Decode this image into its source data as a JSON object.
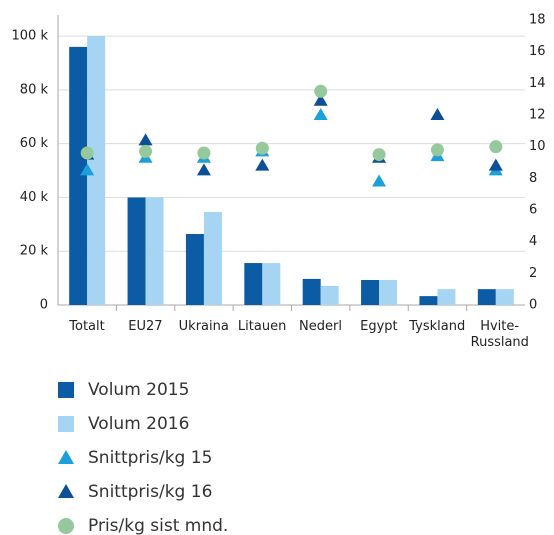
{
  "chart_data": {
    "type": "bar",
    "categories": [
      "Totalt",
      "EU27",
      "Ukraina",
      "Litauen",
      "Nederl",
      "Egypt",
      "Tyskland",
      "Hvite-Russland"
    ],
    "series": [
      {
        "name": "Volum 2015",
        "color": "#0b5ba5",
        "marker": "bar",
        "values": [
          96000,
          40000,
          26400,
          15600,
          9700,
          9300,
          3300,
          5900
        ]
      },
      {
        "name": "Volum 2016",
        "color": "#a5d5f3",
        "marker": "bar",
        "values": [
          100000,
          40000,
          34600,
          15600,
          7100,
          9300,
          5900,
          5900
        ]
      },
      {
        "name": "Snittpris/kg 15",
        "color": "#1c9fda",
        "marker": "triangle",
        "axis": "y2",
        "values": [
          8.5,
          9.3,
          9.3,
          9.7,
          12.0,
          7.8,
          9.4,
          8.5
        ]
      },
      {
        "name": "Snittpris/kg 16",
        "color": "#0c4f94",
        "marker": "triangle",
        "axis": "y2",
        "values": [
          9.5,
          10.4,
          8.5,
          8.8,
          12.9,
          9.3,
          12.0,
          8.8
        ]
      },
      {
        "name": "Pris/kg sist mnd.",
        "color": "#95c99b",
        "marker": "circle",
        "axis": "y2",
        "values": [
          9.6,
          9.7,
          9.6,
          9.9,
          13.5,
          9.5,
          9.8,
          10.0
        ]
      }
    ],
    "ylim": [
      0,
      106000
    ],
    "yticks": [
      {
        "value": 0,
        "label": "0"
      },
      {
        "value": 20000,
        "label": "20 k"
      },
      {
        "value": 40000,
        "label": "40 k"
      },
      {
        "value": 60000,
        "label": "60 k"
      },
      {
        "value": 80000,
        "label": "80 k"
      },
      {
        "value": 100000,
        "label": "100 k"
      }
    ],
    "y2lim": [
      0,
      18
    ],
    "y2ticks": [
      0,
      2,
      4,
      6,
      8,
      10,
      12,
      14,
      16,
      18
    ],
    "grid": true,
    "legend": "bottom"
  }
}
